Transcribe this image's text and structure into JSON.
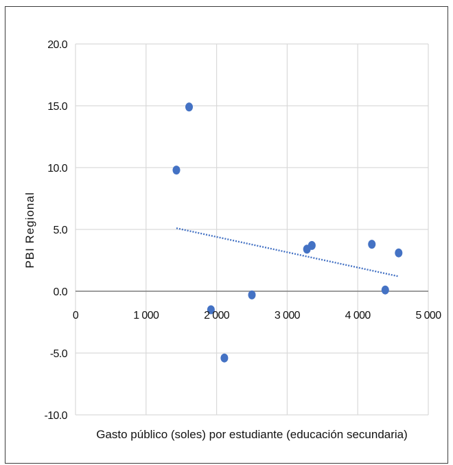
{
  "chart_data": {
    "type": "scatter",
    "title": "",
    "xlabel": "Gasto público (soles) por estudiante (educación secundaria)",
    "ylabel": "PBI Regional",
    "xlim": [
      0,
      5000
    ],
    "ylim": [
      -10,
      20
    ],
    "x_ticks": [
      0,
      1000,
      2000,
      3000,
      4000,
      5000
    ],
    "x_tick_labels": [
      "0",
      "1 000",
      "2 000",
      "3 000",
      "4 000",
      "5 000"
    ],
    "y_ticks": [
      20,
      15,
      10,
      5,
      0,
      -5,
      -10
    ],
    "y_tick_labels": [
      "20.0",
      "15.0",
      "10.0",
      "5.0",
      "0.0",
      "-5.0",
      "-10.0"
    ],
    "grid": true,
    "legend": "none",
    "point_color": "#4472c4",
    "trendline_color": "#4472c4",
    "points": [
      {
        "x": 1430,
        "y": 9.8
      },
      {
        "x": 1610,
        "y": 14.9
      },
      {
        "x": 1920,
        "y": -1.5
      },
      {
        "x": 2110,
        "y": -5.4
      },
      {
        "x": 2500,
        "y": -0.3
      },
      {
        "x": 3280,
        "y": 3.4
      },
      {
        "x": 3350,
        "y": 3.7
      },
      {
        "x": 4200,
        "y": 3.8
      },
      {
        "x": 4390,
        "y": 0.1
      },
      {
        "x": 4580,
        "y": 3.1
      }
    ],
    "trendline": {
      "x": [
        1430,
        4580
      ],
      "y": [
        5.1,
        1.2
      ]
    }
  }
}
